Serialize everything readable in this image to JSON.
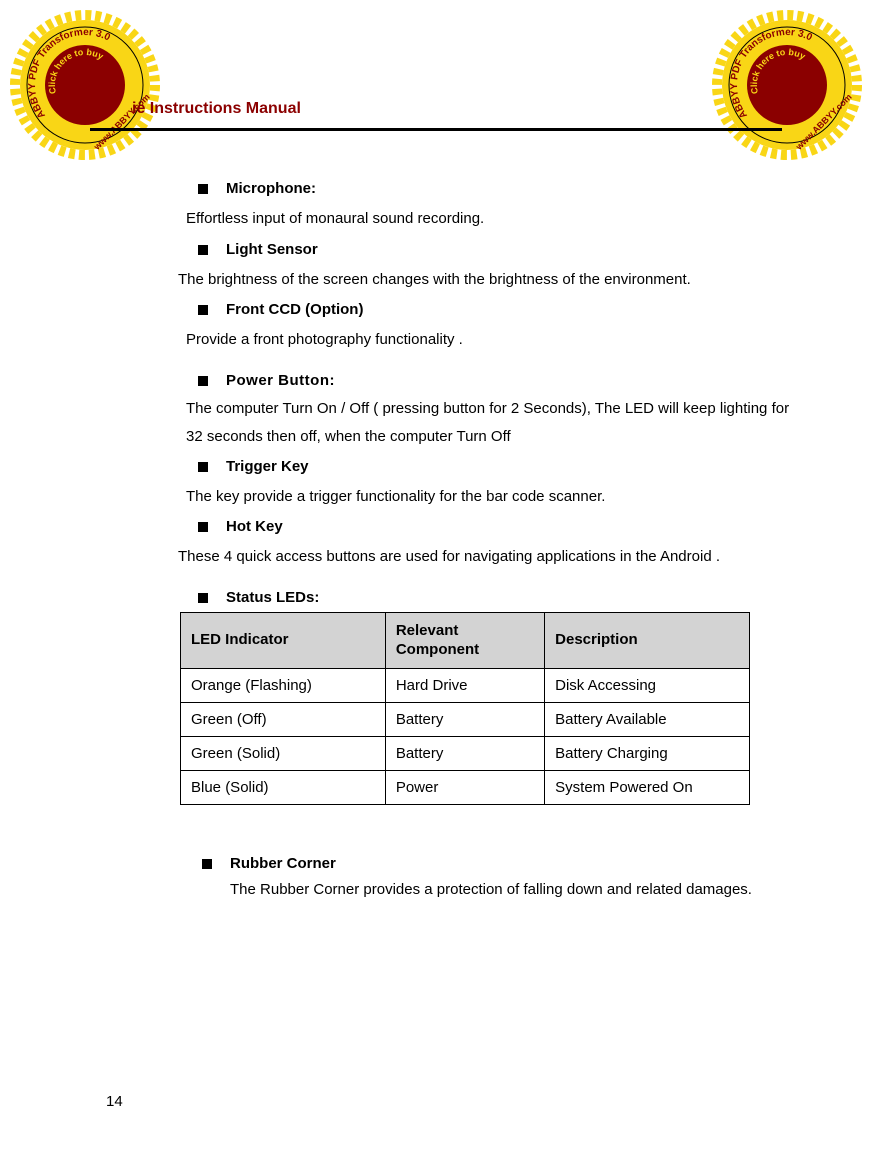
{
  "header": {
    "title_partial": "ie Instructions Manual"
  },
  "stamps": {
    "outer_text": "ABBYY PDF Transformer 3.0",
    "inner_text": "Click here to buy",
    "url_text": "www.ABBYY.com",
    "gear_color": "#f9d616",
    "text_color": "#8b0000",
    "inner_circle_color": "#8b0000"
  },
  "sections": {
    "microphone": {
      "heading": "Microphone:",
      "text": "Effortless input of monaural sound recording."
    },
    "light_sensor": {
      "heading": "Light Sensor",
      "text": "The brightness of the screen changes with the brightness of the environment."
    },
    "front_ccd": {
      "heading": "Front CCD (Option)",
      "text": "Provide a front photography functionality ."
    },
    "power_button": {
      "heading": "Power Button:",
      "text": "The computer Turn On / Off ( pressing  button for 2 Seconds), The LED will keep lighting for 32 seconds then off, when the computer Turn Off"
    },
    "trigger_key": {
      "heading": "Trigger Key",
      "text": "The key provide a trigger functionality  for the bar code scanner."
    },
    "hot_key": {
      "heading": "Hot Key",
      "text": "These 4  quick access buttons are used for navigating applications in the Android ."
    },
    "status_leds": {
      "heading": "Status LEDs:"
    },
    "rubber_corner": {
      "heading": "Rubber Corner",
      "text": "The Rubber Corner provides a protection of falling down and related damages."
    }
  },
  "table": {
    "headers": {
      "col1": "LED Indicator",
      "col2": "Relevant Component",
      "col3": "Description"
    },
    "rows": [
      {
        "indicator": "Orange (Flashing)",
        "component": "Hard Drive",
        "description": "Disk Accessing"
      },
      {
        "indicator": "Green (Off)",
        "component": "Battery",
        "description": "Battery Available"
      },
      {
        "indicator": "Green (Solid)",
        "component": "Battery",
        "description": "Battery Charging"
      },
      {
        "indicator": "Blue (Solid)",
        "component": "Power",
        "description": "System Powered On"
      }
    ]
  },
  "page_number": "14"
}
